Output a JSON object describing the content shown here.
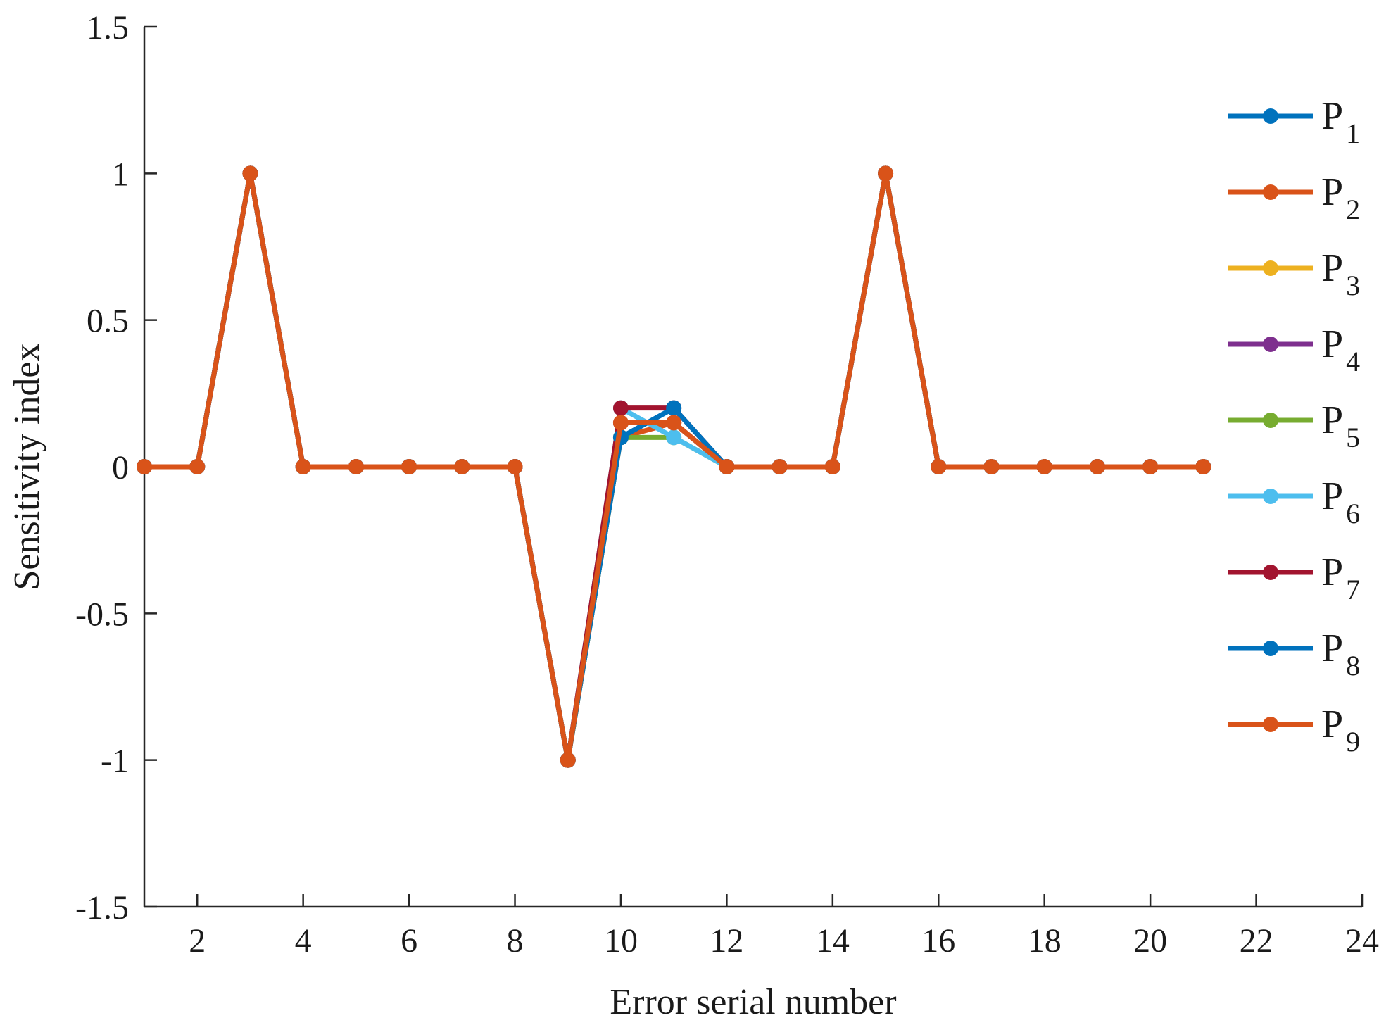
{
  "chart_data": {
    "type": "line",
    "xlabel": "Error serial number",
    "ylabel": "Sensitivity index",
    "xlim": [
      1,
      24
    ],
    "ylim": [
      -1.5,
      1.5
    ],
    "xticks": [
      "2",
      "4",
      "6",
      "8",
      "10",
      "12",
      "14",
      "16",
      "18",
      "20",
      "22",
      "24"
    ],
    "yticks": [
      "1.5",
      "1",
      "0.5",
      "0",
      "-0.5",
      "-1",
      "-1.5"
    ],
    "grid": false,
    "legend_position": "right",
    "x": [
      1,
      2,
      3,
      4,
      5,
      6,
      7,
      8,
      9,
      10,
      11,
      12,
      13,
      14,
      15,
      16,
      17,
      18,
      19,
      20,
      21
    ],
    "series": [
      {
        "name_main": "P",
        "name_sub": "1",
        "color": "#0072BD",
        "values": [
          0,
          0,
          1,
          0,
          0,
          0,
          0,
          0,
          -1,
          0.1,
          0.2,
          0,
          0,
          0,
          1,
          0,
          0,
          0,
          0,
          0,
          0
        ]
      },
      {
        "name_main": "P",
        "name_sub": "2",
        "color": "#D95319",
        "values": [
          0,
          0,
          1,
          0,
          0,
          0,
          0,
          0,
          -1,
          0.1,
          0.15,
          0,
          0,
          0,
          1,
          0,
          0,
          0,
          0,
          0,
          0
        ]
      },
      {
        "name_main": "P",
        "name_sub": "3",
        "color": "#EDB120",
        "values": [
          0,
          0,
          1,
          0,
          0,
          0,
          0,
          0,
          -1,
          0.15,
          0.15,
          0,
          0,
          0,
          1,
          0,
          0,
          0,
          0,
          0,
          0
        ]
      },
      {
        "name_main": "P",
        "name_sub": "4",
        "color": "#7E2F8E",
        "values": [
          0,
          0,
          1,
          0,
          0,
          0,
          0,
          0,
          -1,
          0.15,
          0.15,
          0,
          0,
          0,
          1,
          0,
          0,
          0,
          0,
          0,
          0
        ]
      },
      {
        "name_main": "P",
        "name_sub": "5",
        "color": "#77AC30",
        "values": [
          0,
          0,
          1,
          0,
          0,
          0,
          0,
          0,
          -1,
          0.1,
          0.1,
          0,
          0,
          0,
          1,
          0,
          0,
          0,
          0,
          0,
          0
        ]
      },
      {
        "name_main": "P",
        "name_sub": "6",
        "color": "#4DBEEE",
        "values": [
          0,
          0,
          1,
          0,
          0,
          0,
          0,
          0,
          -1,
          0.2,
          0.1,
          0,
          0,
          0,
          1,
          0,
          0,
          0,
          0,
          0,
          0
        ]
      },
      {
        "name_main": "P",
        "name_sub": "7",
        "color": "#A2142F",
        "values": [
          0,
          0,
          1,
          0,
          0,
          0,
          0,
          0,
          -1,
          0.2,
          0.2,
          0,
          0,
          0,
          1,
          0,
          0,
          0,
          0,
          0,
          0
        ]
      },
      {
        "name_main": "P",
        "name_sub": "8",
        "color": "#0072BD",
        "values": [
          0,
          0,
          1,
          0,
          0,
          0,
          0,
          0,
          -1,
          0.1,
          0.2,
          0,
          0,
          0,
          1,
          0,
          0,
          0,
          0,
          0,
          0
        ]
      },
      {
        "name_main": "P",
        "name_sub": "9",
        "color": "#D95319",
        "values": [
          0,
          0,
          1,
          0,
          0,
          0,
          0,
          0,
          -1,
          0.15,
          0.15,
          0,
          0,
          0,
          1,
          0,
          0,
          0,
          0,
          0,
          0
        ]
      }
    ]
  }
}
